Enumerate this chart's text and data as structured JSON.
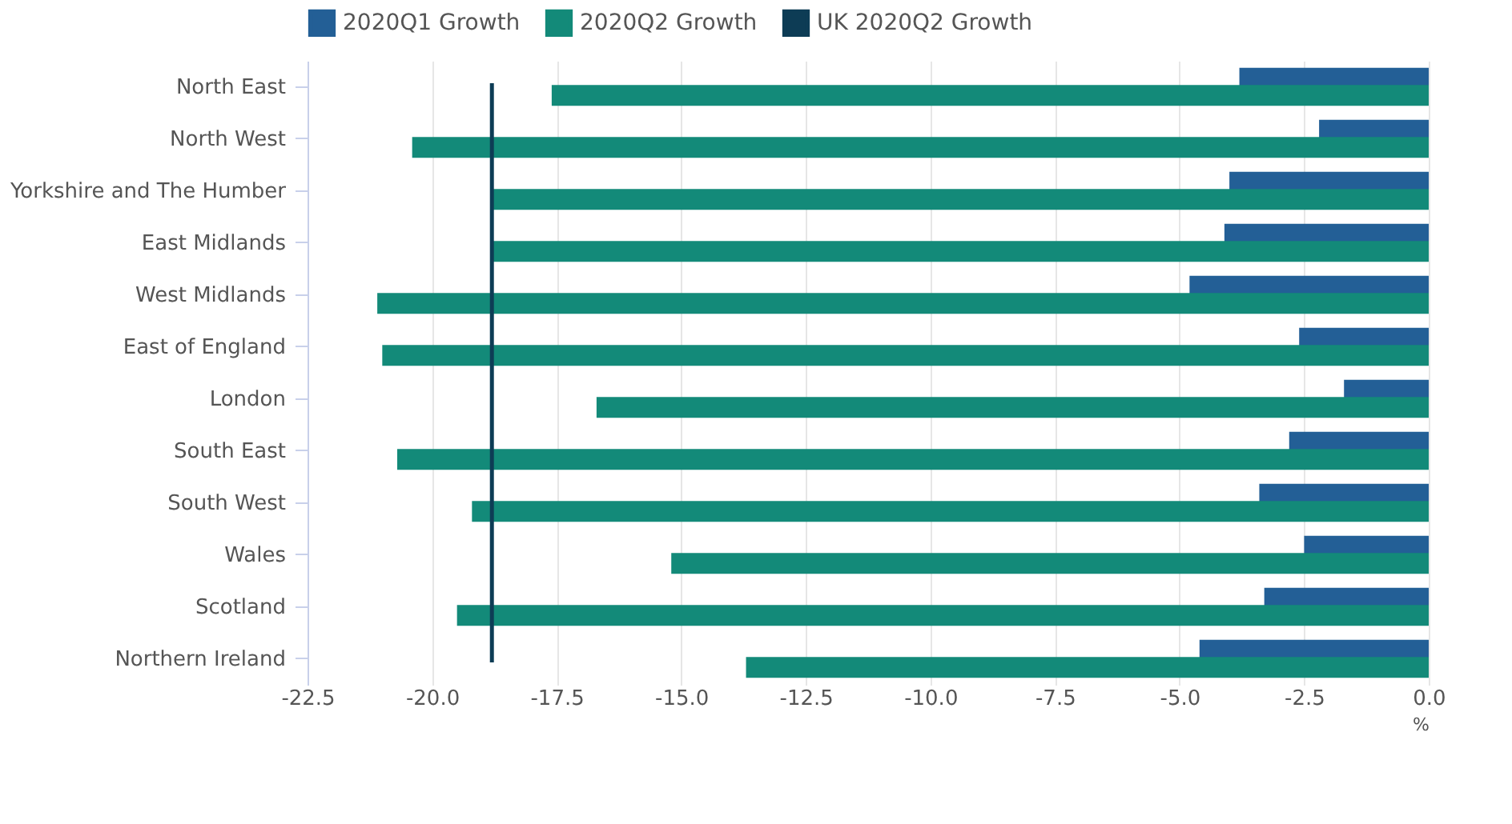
{
  "chart_data": {
    "type": "bar",
    "orientation": "horizontal",
    "categories": [
      "North East",
      "North West",
      "Yorkshire and The Humber",
      "East Midlands",
      "West Midlands",
      "East of England",
      "London",
      "South East",
      "South West",
      "Wales",
      "Scotland",
      "Northern Ireland"
    ],
    "series": [
      {
        "name": "2020Q1 Growth",
        "color": "#235f96",
        "values": [
          -3.8,
          -2.2,
          -4.0,
          -4.1,
          -4.8,
          -2.6,
          -1.7,
          -2.8,
          -3.4,
          -2.5,
          -3.3,
          -4.6
        ]
      },
      {
        "name": "2020Q2 Growth",
        "color": "#138a79",
        "values": [
          -17.6,
          -20.4,
          -18.8,
          -18.8,
          -21.1,
          -21.0,
          -16.7,
          -20.7,
          -19.2,
          -15.2,
          -19.5,
          -13.7
        ]
      }
    ],
    "ref_lines": [
      {
        "axis": "x",
        "value": -18.8,
        "label": "UK 2020Q2 Growth",
        "color": "#0d3c55"
      }
    ],
    "xlim": [
      -22.5,
      0.0
    ],
    "xticks": [
      {
        "value": -22.5,
        "label": "-22.5"
      },
      {
        "value": -20,
        "label": "-20.0"
      },
      {
        "value": -17.5,
        "label": "-17.5"
      },
      {
        "value": -15,
        "label": "-15.0"
      },
      {
        "value": -12.5,
        "label": "-12.5"
      },
      {
        "value": -10,
        "label": "-10.0"
      },
      {
        "value": -7.5,
        "label": "-7.5"
      },
      {
        "value": -5,
        "label": "-5.0"
      },
      {
        "value": -2.5,
        "label": "-2.5"
      },
      {
        "value": 0,
        "label": "0.0"
      }
    ],
    "xlabel": "%",
    "grid": "x",
    "legend": "top left"
  }
}
